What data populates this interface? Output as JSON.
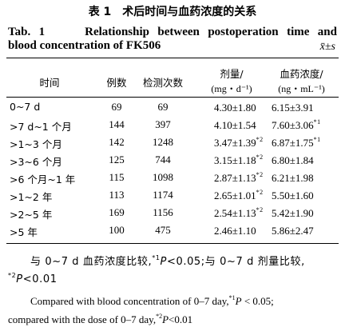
{
  "title_cn": "表 1　术后时间与血药浓度的关系",
  "title_en_line1": "Tab. 1　　Relationship between postoperation time and",
  "title_en_line2": "blood concentration of FK506",
  "stat_note": "x̄±s",
  "headers": {
    "time": "时间",
    "cases": "例数",
    "tests": "检测次数",
    "dose": "剂量/",
    "dose_unit": "(mg・d⁻¹)",
    "conc": "血药浓度/",
    "conc_unit": "(ng・mL⁻¹)"
  },
  "rows": [
    {
      "time": "0~7 d",
      "cases": "69",
      "tests": "69",
      "dose": "4.30±1.80",
      "dose_mark": "",
      "conc": "6.15±3.91",
      "conc_mark": ""
    },
    {
      "time": ">7 d~1 个月",
      "cases": "144",
      "tests": "397",
      "dose": "4.10±1.54",
      "dose_mark": "",
      "conc": "7.60±3.06",
      "conc_mark": "*1"
    },
    {
      "time": ">1~3 个月",
      "cases": "142",
      "tests": "1248",
      "dose": "3.47±1.39",
      "dose_mark": "*2",
      "conc": "6.87±1.75",
      "conc_mark": "*1"
    },
    {
      "time": ">3~6 个月",
      "cases": "125",
      "tests": "744",
      "dose": "3.15±1.18",
      "dose_mark": "*2",
      "conc": "6.80±1.84",
      "conc_mark": ""
    },
    {
      "time": ">6 个月~1 年",
      "cases": "115",
      "tests": "1098",
      "dose": "2.87±1.13",
      "dose_mark": "*2",
      "conc": "6.21±1.98",
      "conc_mark": ""
    },
    {
      "time": ">1~2 年",
      "cases": "113",
      "tests": "1174",
      "dose": "2.65±1.01",
      "dose_mark": "*2",
      "conc": "5.50±1.60",
      "conc_mark": ""
    },
    {
      "time": ">2~5 年",
      "cases": "169",
      "tests": "1156",
      "dose": "2.54±1.13",
      "dose_mark": "*2",
      "conc": "5.42±1.90",
      "conc_mark": ""
    },
    {
      "time": ">5 年",
      "cases": "100",
      "tests": "475",
      "dose": "2.46±1.10",
      "dose_mark": "",
      "conc": "5.86±2.47",
      "conc_mark": ""
    }
  ],
  "footnote_cn_1a": "与 0~7 d 血药浓度比较,",
  "footnote_cn_1b": "*1",
  "footnote_cn_1c": "P",
  "footnote_cn_1d": "<0.05;与 0~7 d 剂量比较,",
  "footnote_cn_2a": "*2",
  "footnote_cn_2b": "P",
  "footnote_cn_2c": "<0.01",
  "footnote_en_1a": "Compared with blood concentration of 0–7 day,",
  "footnote_en_1b": "*1",
  "footnote_en_1c": "P",
  "footnote_en_1d": " < 0.05;",
  "footnote_en_2a": "compared with the dose of 0–7 day,",
  "footnote_en_2b": "*2",
  "footnote_en_2c": "P",
  "footnote_en_2d": "<0.01"
}
